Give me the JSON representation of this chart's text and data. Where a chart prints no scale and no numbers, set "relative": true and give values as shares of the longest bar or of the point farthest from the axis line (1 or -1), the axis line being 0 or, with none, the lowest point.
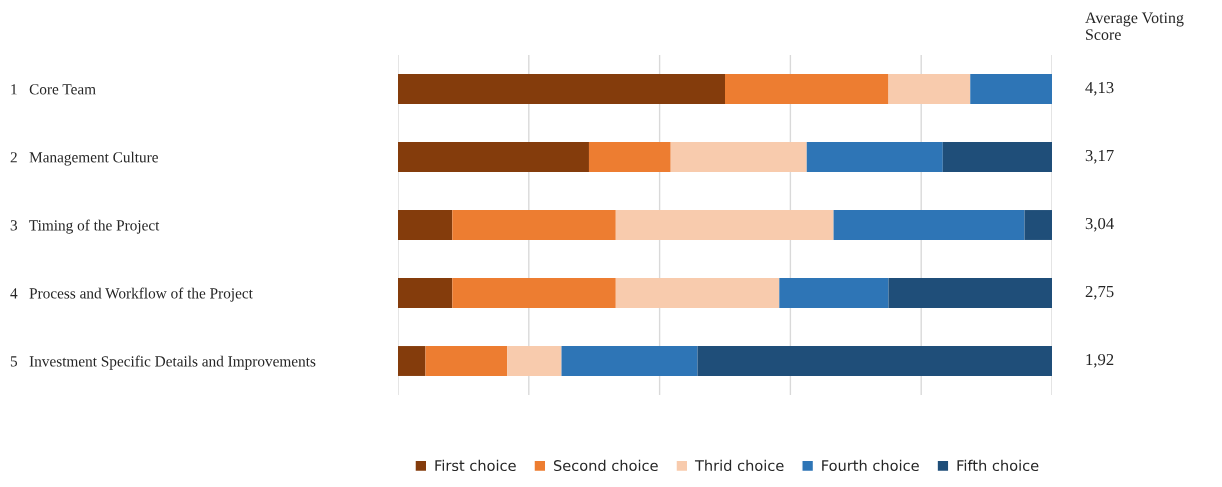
{
  "chart_data": {
    "type": "bar",
    "orientation": "horizontal",
    "stacked": true,
    "relative": true,
    "categories": [
      "1   Core Team",
      "2   Management Culture",
      "3   Timing of the Project",
      "4   Process and Workflow of the Project",
      "5   Investment Specific Details and Improvements"
    ],
    "series": [
      {
        "name": "First choice",
        "color": "#843c0c",
        "values": [
          0.5,
          0.292,
          0.083,
          0.083,
          0.042
        ]
      },
      {
        "name": "Second choice",
        "color": "#ed7d31",
        "values": [
          0.25,
          0.125,
          0.25,
          0.25,
          0.125
        ]
      },
      {
        "name": "Thrid choice",
        "color": "#f8cbad",
        "values": [
          0.125,
          0.208,
          0.333,
          0.25,
          0.083
        ]
      },
      {
        "name": "Fourth choice",
        "color": "#2e75b6",
        "values": [
          0.125,
          0.208,
          0.292,
          0.167,
          0.208
        ]
      },
      {
        "name": "Fifth choice",
        "color": "#1f4e79",
        "values": [
          0,
          0.167,
          0.042,
          0.25,
          0.542
        ]
      }
    ],
    "annotations": [
      "Average Voting Score",
      "4,13",
      "3,17",
      "3,04",
      "2,75",
      "1,92"
    ],
    "grid": "x",
    "legend": "bottom"
  }
}
